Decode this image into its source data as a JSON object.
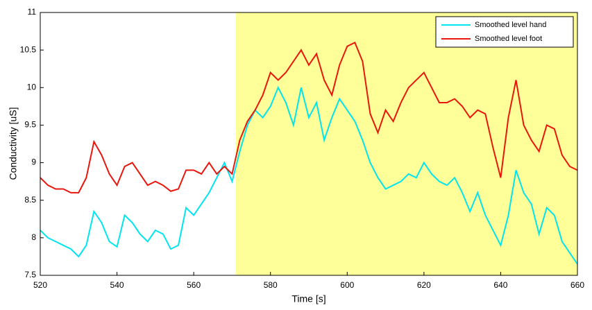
{
  "chart_data": {
    "type": "line",
    "x_label": "Time [s]",
    "y_label": "Conductivity [uS]",
    "x": [
      520,
      522,
      524,
      526,
      528,
      530,
      532,
      534,
      536,
      538,
      540,
      542,
      544,
      546,
      548,
      550,
      552,
      554,
      556,
      558,
      560,
      562,
      564,
      566,
      568,
      570,
      572,
      574,
      576,
      578,
      580,
      582,
      584,
      586,
      588,
      590,
      592,
      594,
      596,
      598,
      600,
      602,
      604,
      606,
      608,
      610,
      612,
      614,
      616,
      618,
      620,
      622,
      624,
      626,
      628,
      630,
      632,
      634,
      636,
      638,
      640,
      642,
      644,
      646,
      648,
      650,
      652,
      654,
      656,
      658,
      660
    ],
    "series": [
      {
        "name": "Smoothed level hand",
        "color": "#00e5ee",
        "values": [
          8.1,
          8.0,
          7.95,
          7.9,
          7.85,
          7.75,
          7.9,
          8.35,
          8.2,
          7.95,
          7.88,
          8.3,
          8.2,
          8.05,
          7.95,
          8.1,
          8.05,
          7.85,
          7.9,
          8.4,
          8.3,
          8.45,
          8.6,
          8.8,
          9.0,
          8.75,
          9.15,
          9.5,
          9.7,
          9.6,
          9.75,
          10.0,
          9.8,
          9.5,
          10.0,
          9.6,
          9.8,
          9.3,
          9.6,
          9.85,
          9.7,
          9.55,
          9.3,
          9.0,
          8.8,
          8.65,
          8.7,
          8.75,
          8.85,
          8.8,
          9.0,
          8.85,
          8.75,
          8.7,
          8.8,
          8.6,
          8.35,
          8.6,
          8.3,
          8.1,
          7.9,
          8.3,
          8.9,
          8.6,
          8.45,
          8.05,
          8.4,
          8.3,
          7.95,
          7.8,
          7.65
        ]
      },
      {
        "name": "Smoothed level foot",
        "color": "#e8160c",
        "values": [
          8.8,
          8.7,
          8.65,
          8.65,
          8.6,
          8.6,
          8.8,
          9.28,
          9.1,
          8.85,
          8.7,
          8.95,
          9.0,
          8.85,
          8.7,
          8.75,
          8.7,
          8.62,
          8.65,
          8.9,
          8.9,
          8.85,
          9.0,
          8.85,
          8.95,
          8.85,
          9.3,
          9.55,
          9.7,
          9.9,
          10.2,
          10.1,
          10.2,
          10.35,
          10.5,
          10.3,
          10.45,
          10.1,
          9.9,
          10.3,
          10.55,
          10.6,
          10.35,
          9.65,
          9.4,
          9.7,
          9.55,
          9.8,
          10.0,
          10.1,
          10.2,
          10.0,
          9.8,
          9.8,
          9.85,
          9.75,
          9.6,
          9.7,
          9.65,
          9.2,
          8.8,
          9.6,
          10.1,
          9.5,
          9.3,
          9.15,
          9.5,
          9.45,
          9.1,
          8.95,
          8.9
        ]
      }
    ],
    "shaded_x": [
      571,
      660
    ],
    "shaded_color": "#ffff99",
    "xlim": [
      520,
      660
    ],
    "xticks": [
      520,
      540,
      560,
      580,
      600,
      620,
      640,
      660
    ],
    "ylim": [
      7.5,
      11
    ],
    "yticks": [
      7.5,
      8,
      8.5,
      9,
      9.5,
      10,
      10.5,
      11
    ],
    "legend": "upper right"
  }
}
